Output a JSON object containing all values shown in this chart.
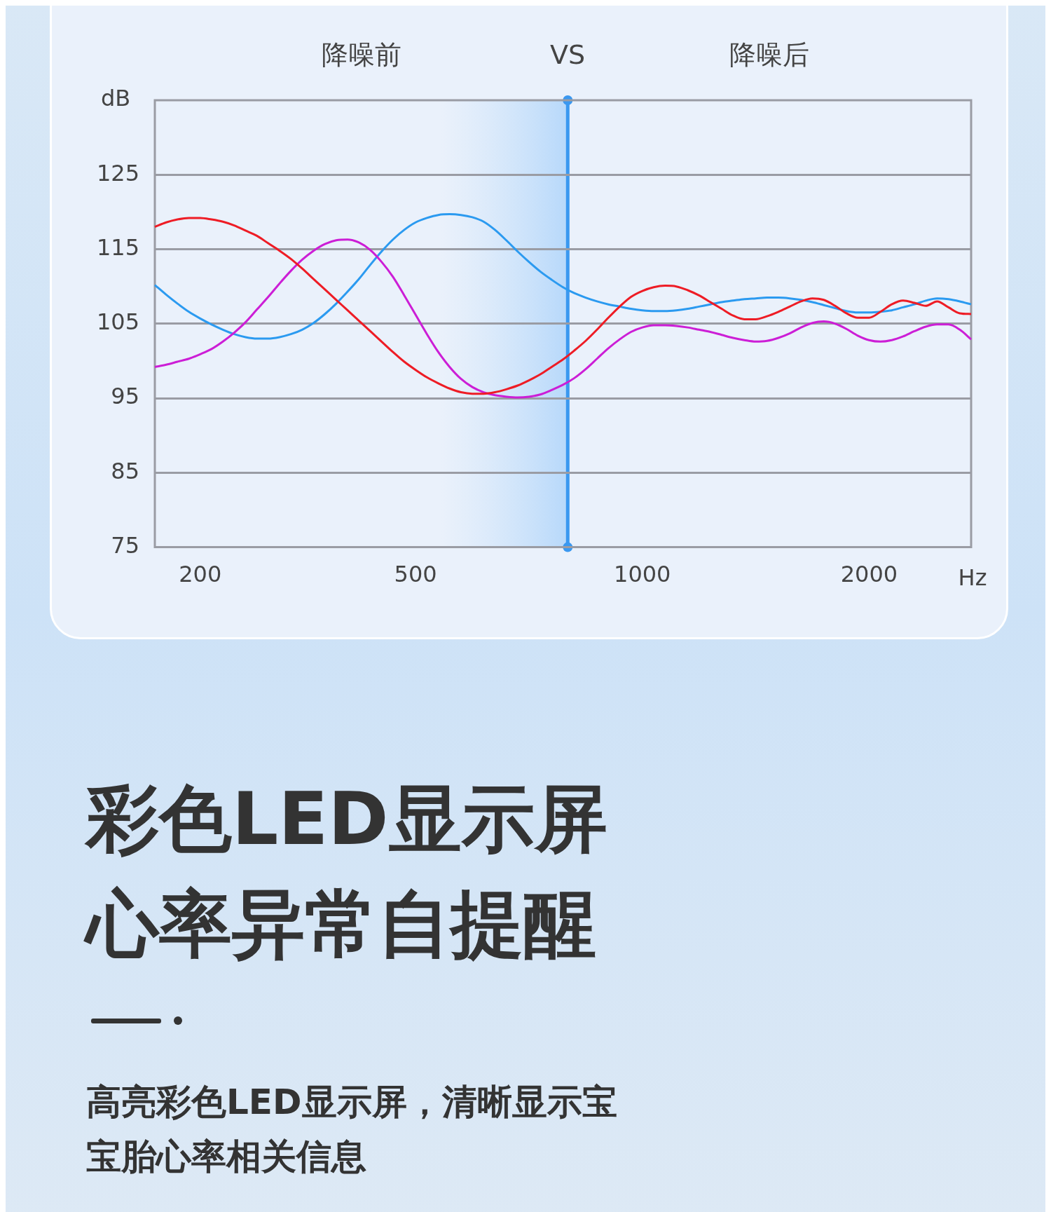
{
  "chart_data": {
    "type": "line",
    "title": "彩色LED显示屏",
    "subtitle": "心率异常自提醒",
    "xlabel": "Hz",
    "ylabel": "dB",
    "annotations": [
      "降噪前",
      "VS",
      "降噪后",
      "高亮彩色LED显示屏，清晰显示宝宝胎心率相关信息"
    ],
    "categories": [
      null,
      null,
      null,
      null,
      "200",
      null,
      null,
      null,
      null,
      null,
      null,
      null,
      null,
      null,
      null,
      null,
      null,
      null,
      null,
      null,
      null,
      null,
      null,
      "500",
      null,
      null,
      null,
      null,
      null,
      null,
      null,
      null,
      null,
      null,
      null,
      null,
      null,
      null,
      null,
      null,
      null,
      null,
      null,
      "1000",
      null,
      null,
      null,
      null,
      null,
      null,
      null,
      null,
      null,
      null,
      null,
      null,
      null,
      null,
      null,
      null,
      null,
      null,
      null,
      "2000",
      null,
      null,
      null,
      null,
      null,
      null,
      null,
      null,
      null
    ],
    "series": [
      {
        "color": "#ee1c25",
        "values": [
          118,
          118.6,
          119,
          119.2,
          119.2,
          119,
          118.7,
          118.2,
          117.5,
          116.8,
          115.8,
          114.8,
          113.7,
          112.4,
          111,
          109.6,
          108.2,
          106.8,
          105.4,
          104,
          102.6,
          101.2,
          99.9,
          98.8,
          97.8,
          97,
          96.3,
          95.8,
          95.6,
          95.6,
          95.8,
          96.2,
          96.7,
          97.4,
          98.2,
          99.2,
          100.2,
          101.4,
          102.7,
          104.2,
          105.8,
          107.3,
          108.6,
          109.4,
          109.9,
          110.1,
          110,
          109.5,
          108.8,
          107.9,
          107,
          106.1,
          105.6,
          105.6,
          106,
          106.6,
          107.3,
          108,
          108.4,
          108.2,
          107.4,
          106.4,
          105.8,
          105.8,
          106.6,
          107.6,
          108.1,
          107.8,
          107.4,
          108,
          107.2,
          106.4,
          106.3
        ]
      },
      {
        "color": "#cc1ed6",
        "values": [
          99.2,
          99.5,
          99.9,
          100.3,
          100.9,
          101.6,
          102.6,
          103.8,
          105.2,
          106.9,
          108.6,
          110.4,
          112.1,
          113.6,
          114.8,
          115.7,
          116.2,
          116.3,
          115.9,
          114.9,
          113.3,
          111.3,
          108.8,
          106.2,
          103.6,
          101.2,
          99.2,
          97.6,
          96.5,
          95.8,
          95.4,
          95.2,
          95.1,
          95.2,
          95.5,
          96.1,
          96.8,
          97.7,
          98.9,
          100.3,
          101.7,
          102.9,
          103.9,
          104.5,
          104.8,
          104.8,
          104.7,
          104.5,
          104.2,
          103.9,
          103.5,
          103.1,
          102.8,
          102.6,
          102.7,
          103.1,
          103.7,
          104.5,
          105.1,
          105.3,
          105,
          104.3,
          103.4,
          102.8,
          102.6,
          102.8,
          103.3,
          104,
          104.6,
          104.9,
          104.9,
          104.2,
          102.9
        ]
      },
      {
        "color": "#2b9af0",
        "values": [
          110.2,
          108.9,
          107.7,
          106.6,
          105.7,
          104.9,
          104.2,
          103.6,
          103.2,
          103,
          103,
          103.2,
          103.6,
          104.2,
          105.1,
          106.3,
          107.7,
          109.3,
          111,
          112.9,
          114.7,
          116.3,
          117.6,
          118.6,
          119.2,
          119.6,
          119.7,
          119.6,
          119.3,
          118.7,
          117.6,
          116.2,
          114.7,
          113.3,
          112,
          110.9,
          109.9,
          109.1,
          108.5,
          108,
          107.6,
          107.3,
          107,
          106.8,
          106.7,
          106.7,
          106.8,
          107,
          107.3,
          107.6,
          107.9,
          108.1,
          108.3,
          108.4,
          108.5,
          108.5,
          108.4,
          108.2,
          107.9,
          107.5,
          107.1,
          106.7,
          106.5,
          106.5,
          106.6,
          106.8,
          107.2,
          107.6,
          108.1,
          108.4,
          108.3,
          108,
          107.6
        ]
      }
    ],
    "ylim": [
      75,
      135
    ],
    "yticks": [
      75,
      85,
      95,
      105,
      115,
      125
    ],
    "grid": "y",
    "marker": "none"
  }
}
